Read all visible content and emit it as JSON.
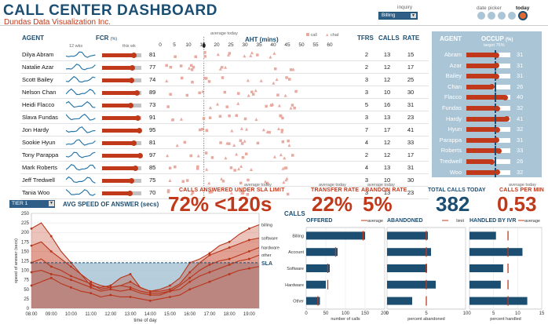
{
  "header": {
    "title": "CALL CENTER DASHBOARD",
    "subtitle": "Dundas Data Visualization Inc.",
    "inquiry_label": "inquiry",
    "inquiry_value": "Billing",
    "date_picker_label": "date picker",
    "today_label": "today"
  },
  "agents_table": {
    "headers": {
      "agent": "AGENT",
      "fcr": "FCR",
      "fcr_unit": "(%)",
      "aht": "AHT (mins)",
      "tfrs": "TFRS",
      "calls": "CALLS",
      "rate": "RATE",
      "wks_note": "12 wks",
      "this_wk_note": "this wk",
      "avg_today_note": "average today"
    },
    "legend": {
      "call": "call",
      "chat": "chat"
    },
    "aht_ticks": [
      "0",
      "5",
      "10",
      "15",
      "20",
      "25",
      "30",
      "35",
      "40",
      "45",
      "50",
      "55",
      "60"
    ],
    "rows": [
      {
        "name": "Dilya Abram",
        "fcr": 81,
        "tfrs": 2,
        "calls": 13,
        "rate": 15
      },
      {
        "name": "Natalie Azar",
        "fcr": 77,
        "tfrs": 2,
        "calls": 12,
        "rate": 17
      },
      {
        "name": "Scott Bailey",
        "fcr": 74,
        "tfrs": 3,
        "calls": 12,
        "rate": 25
      },
      {
        "name": "Nelson Chan",
        "fcr": 89,
        "tfrs": 3,
        "calls": 10,
        "rate": 30
      },
      {
        "name": "Heidi Flacco",
        "fcr": 73,
        "tfrs": 5,
        "calls": 16,
        "rate": 31
      },
      {
        "name": "Slava Fundas",
        "fcr": 91,
        "tfrs": 3,
        "calls": 13,
        "rate": 23
      },
      {
        "name": "Jon Hardy",
        "fcr": 95,
        "tfrs": 7,
        "calls": 17,
        "rate": 41
      },
      {
        "name": "Sookie Hyun",
        "fcr": 81,
        "tfrs": 4,
        "calls": 12,
        "rate": 33
      },
      {
        "name": "Tony Parappa",
        "fcr": 97,
        "tfrs": 2,
        "calls": 12,
        "rate": 17
      },
      {
        "name": "Mark Roberts",
        "fcr": 85,
        "tfrs": 4,
        "calls": 13,
        "rate": 31
      },
      {
        "name": "Jeff Tredwell",
        "fcr": 75,
        "tfrs": 3,
        "calls": 10,
        "rate": 30
      },
      {
        "name": "Tania Woo",
        "fcr": 70,
        "tfrs": 3,
        "calls": 13,
        "rate": 23
      }
    ]
  },
  "occupancy": {
    "headers": {
      "agent": "AGENT",
      "occup": "OCCUP",
      "unit": "(%)",
      "target_note": "target 75%"
    },
    "target": 75,
    "rows": [
      {
        "name": "Abram",
        "value": 31
      },
      {
        "name": "Azar",
        "value": 31
      },
      {
        "name": "Bailey",
        "value": 31
      },
      {
        "name": "Chan",
        "value": 26
      },
      {
        "name": "Flacco",
        "value": 40
      },
      {
        "name": "Fundas",
        "value": 32
      },
      {
        "name": "Hardy",
        "value": 41
      },
      {
        "name": "Hyun",
        "value": 32
      },
      {
        "name": "Parappa",
        "value": 31
      },
      {
        "name": "Roberts",
        "value": 33
      },
      {
        "name": "Tredwell",
        "value": 26
      },
      {
        "name": "Woo",
        "value": 32
      }
    ]
  },
  "kpis": {
    "avg_today": "average today",
    "sla_label": "CALLS ANSWERED UNDER SLA LIMIT",
    "sla_value": "72% <120s",
    "transfer_label": "TRANSFER RATE",
    "transfer_value": "22%",
    "abandon_label": "ABANDON RATE",
    "abandon_value": "5%",
    "total_label": "TOTAL CALLS TODAY",
    "total_value": "382",
    "cpm_label": "CALLS PER MIN",
    "cpm_value": "0.53"
  },
  "asa": {
    "tier": "TIER 1",
    "title": "AVG SPEED OF ANSWER (secs)"
  },
  "calls_panel": {
    "title": "CALLS"
  },
  "chart_data": [
    {
      "type": "area",
      "title": "AVG SPEED OF ANSWER (secs)",
      "xlabel": "time of day",
      "ylabel": "speed of answer (secs)",
      "ylim": [
        0,
        250
      ],
      "yticks": [
        0,
        25,
        50,
        75,
        100,
        125,
        150,
        175,
        200,
        225,
        250
      ],
      "x": [
        "08:00",
        "08:30",
        "09:00",
        "09:30",
        "10:00",
        "10:30",
        "11:00",
        "11:30",
        "12:00",
        "12:30",
        "13:00",
        "13:30",
        "14:00",
        "14:30",
        "15:00",
        "15:30",
        "16:00",
        "16:30",
        "17:00",
        "17:30",
        "18:00",
        "18:30",
        "19:00",
        "19:30"
      ],
      "xtick_labels": [
        "08:00",
        "09:00",
        "10:00",
        "11:00",
        "12:00",
        "13:00",
        "14:00",
        "15:00",
        "16:00",
        "17:00",
        "18:00",
        "19:00"
      ],
      "sla": 120,
      "sla_label": "SLA",
      "series": [
        {
          "name": "billing",
          "values": [
            210,
            225,
            190,
            150,
            120,
            90,
            60,
            55,
            60,
            80,
            90,
            55,
            45,
            50,
            60,
            80,
            120,
            130,
            145,
            165,
            175,
            195,
            210,
            220
          ]
        },
        {
          "name": "software",
          "values": [
            165,
            175,
            150,
            130,
            110,
            90,
            70,
            60,
            55,
            60,
            70,
            55,
            45,
            45,
            50,
            65,
            95,
            120,
            140,
            150,
            160,
            170,
            180,
            185
          ]
        },
        {
          "name": "hardware",
          "values": [
            120,
            130,
            110,
            100,
            85,
            75,
            65,
            50,
            55,
            60,
            55,
            45,
            40,
            40,
            45,
            60,
            80,
            100,
            115,
            125,
            130,
            140,
            150,
            160
          ]
        },
        {
          "name": "other",
          "values": [
            95,
            100,
            90,
            85,
            75,
            65,
            55,
            45,
            50,
            45,
            50,
            40,
            35,
            35,
            45,
            50,
            70,
            85,
            95,
            105,
            115,
            125,
            130,
            140
          ]
        },
        {
          "name": "",
          "values": [
            60,
            70,
            80,
            65,
            55,
            45,
            40,
            30,
            35,
            30,
            30,
            25,
            20,
            25,
            30,
            35,
            50,
            60,
            70,
            80,
            90,
            100,
            105,
            110
          ]
        }
      ]
    },
    {
      "type": "bar",
      "title": "OFFERED",
      "xlabel": "number of calls",
      "categories": [
        "Billing",
        "Account",
        "Software",
        "Hardware",
        "Other"
      ],
      "values": [
        150,
        80,
        60,
        50,
        35
      ],
      "average": [
        145,
        75,
        55,
        55,
        30
      ],
      "average_label": "average",
      "xlim": [
        0,
        200
      ],
      "xticks": [
        0,
        50,
        100,
        150,
        200
      ]
    },
    {
      "type": "bar",
      "title": "ABANDONED",
      "xlabel": "percent abandoned",
      "categories": [
        "Billing",
        "Account",
        "Software",
        "Hardware",
        "Other"
      ],
      "values": [
        5.2,
        5.6,
        5.1,
        6.2,
        3.2
      ],
      "limit": [
        5,
        5,
        5,
        5,
        5
      ],
      "limit_label": "limit",
      "xlim": [
        0,
        10
      ],
      "xticks": [
        0,
        5,
        10
      ]
    },
    {
      "type": "bar",
      "title": "HANDLED BY IVR",
      "xlabel": "percent handled",
      "categories": [
        "Billing",
        "Account",
        "Software",
        "Hardware",
        "Other"
      ],
      "values": [
        5.5,
        11,
        7,
        6.5,
        12
      ],
      "average": [
        8,
        8,
        8,
        8,
        8
      ],
      "average_label": "average",
      "xlim": [
        0,
        15
      ],
      "xticks": [
        0,
        5,
        10,
        15
      ]
    }
  ]
}
